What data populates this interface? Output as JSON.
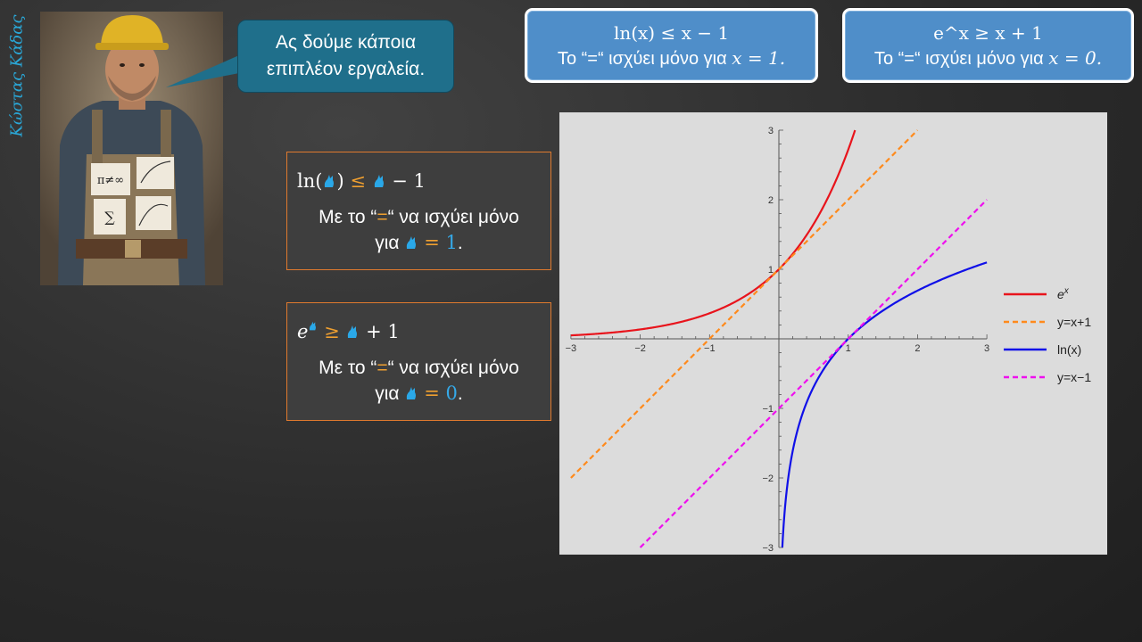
{
  "author": {
    "name": "Κώστας Κάδας"
  },
  "speech_bubble": {
    "line1": "Ας δούμε κάποια",
    "line2": "επιπλέον εργαλεία."
  },
  "top_boxes": [
    {
      "formula": "ln(x) ≤ x − 1",
      "prefix": "Το “=“ ισχύει μόνο για ",
      "condition": "x = 1."
    },
    {
      "formula": "e^x ≥ x + 1",
      "prefix": "Το “=“ ισχύει μόνο για ",
      "condition": "x = 0."
    }
  ],
  "cards": [
    {
      "formula_pre": "ln(",
      "formula_mid": ") ",
      "leq": "≤",
      "formula_post": " − 1",
      "desc_prefix": "Με το “",
      "eq": "=",
      "desc_suffix": "“ να ισχύει μόνο",
      "desc_line2_prefix": "για ",
      "eq2": "= ",
      "value": "1",
      "period": "."
    },
    {
      "formula_pre": "e",
      "geq": "≥",
      "formula_post": " + 1",
      "desc_prefix": "Με το “",
      "eq": "=",
      "desc_suffix": "“ να ισχύει μόνο",
      "desc_line2_prefix": "για ",
      "eq2": "= ",
      "value": "0",
      "period": "."
    }
  ],
  "colors": {
    "accent_orange": "#f0a030",
    "accent_blue": "#35a9e8",
    "card_border": "#e07a2e",
    "topbox_fill": "#4f8ec9"
  },
  "chart_data": {
    "type": "line",
    "xlim": [
      -3,
      3
    ],
    "ylim": [
      -3,
      3
    ],
    "xticks": [
      -3,
      -2,
      -1,
      1,
      2,
      3
    ],
    "yticks": [
      -3,
      -2,
      -1,
      1,
      2,
      3
    ],
    "grid": false,
    "legend_position": "right",
    "series": [
      {
        "name": "e^x",
        "legend_base": "e",
        "legend_sup": "x",
        "color": "#e8141c",
        "dash": false,
        "function": "exp",
        "x": [
          -3,
          -2,
          -1,
          0,
          0.5,
          1,
          1.0986
        ],
        "y": [
          0.05,
          0.135,
          0.368,
          1,
          1.649,
          2.718,
          3
        ]
      },
      {
        "name": "y=x+1",
        "color": "#ff8a1c",
        "dash": true,
        "function": "xplus1",
        "x": [
          -3,
          2
        ],
        "y": [
          -2,
          3
        ]
      },
      {
        "name": "ln(x)",
        "color": "#1010e8",
        "dash": false,
        "function": "ln",
        "x": [
          0.0498,
          0.5,
          1,
          2,
          3
        ],
        "y": [
          -3,
          -0.693,
          0,
          0.693,
          1.099
        ]
      },
      {
        "name": "y=x−1",
        "color": "#ee10ee",
        "dash": true,
        "function": "xminus1",
        "x": [
          -2,
          3
        ],
        "y": [
          -3,
          2
        ]
      }
    ]
  }
}
